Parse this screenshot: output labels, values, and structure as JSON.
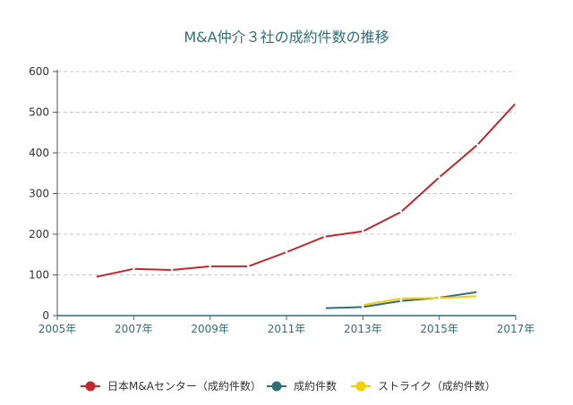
{
  "chart_data": {
    "type": "line",
    "title": "M&A仲介３社の成約件数の推移",
    "xlabel": "",
    "ylabel": "",
    "xlim": [
      2005,
      2017
    ],
    "ylim": [
      0,
      600
    ],
    "y_ticks": [
      "0",
      "100",
      "200",
      "300",
      "400",
      "500",
      "600"
    ],
    "x_ticks": [
      "2005年",
      "2007年",
      "2009年",
      "2011年",
      "2013年",
      "2015年",
      "2017年"
    ],
    "grid": "horizontal dashed",
    "legend_position": "bottom",
    "series": [
      {
        "name": "日本M&Aセンター（成約件数）",
        "color": "#c0282e",
        "points": [
          [
            2006,
            95
          ],
          [
            2007,
            115
          ],
          [
            2008,
            112
          ],
          [
            2009,
            121
          ],
          [
            2010,
            121
          ],
          [
            2011,
            156
          ],
          [
            2012,
            194
          ],
          [
            2013,
            207
          ],
          [
            2014,
            255
          ],
          [
            2015,
            340
          ],
          [
            2016,
            420
          ],
          [
            2017,
            522
          ]
        ]
      },
      {
        "name": "成約件数",
        "color": "#2f6f77",
        "points": [
          [
            2012,
            18
          ],
          [
            2013,
            21
          ],
          [
            2014,
            36
          ],
          [
            2015,
            44
          ],
          [
            2016,
            58
          ]
        ]
      },
      {
        "name": "ストライク（成約件数）",
        "color": "#f5cd00",
        "points": [
          [
            2013,
            26
          ],
          [
            2014,
            42
          ],
          [
            2015,
            43
          ],
          [
            2016,
            48
          ]
        ]
      }
    ]
  }
}
